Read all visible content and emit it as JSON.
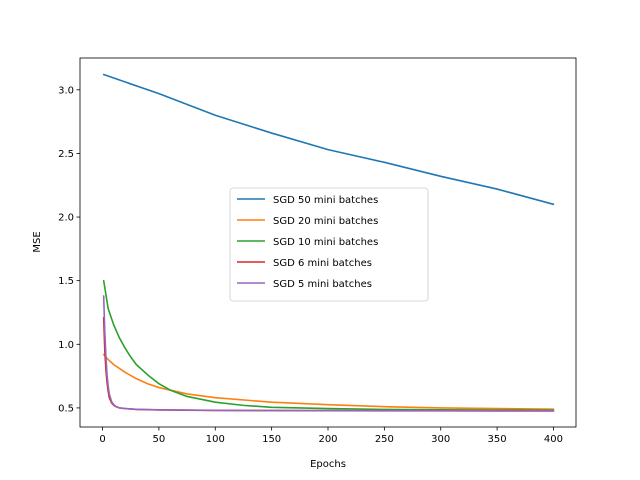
{
  "chart_data": {
    "type": "line",
    "title": "",
    "xlabel": "Epochs",
    "ylabel": "MSE",
    "xlim": [
      -20,
      420
    ],
    "ylim": [
      0.35,
      3.25
    ],
    "xticks": [
      0,
      50,
      100,
      150,
      200,
      250,
      300,
      350,
      400
    ],
    "yticks": [
      0.5,
      1.0,
      1.5,
      2.0,
      2.5,
      3.0
    ],
    "xtick_labels": [
      "0",
      "50",
      "100",
      "150",
      "200",
      "250",
      "300",
      "350",
      "400"
    ],
    "ytick_labels": [
      "0.5",
      "1.0",
      "1.5",
      "2.0",
      "2.5",
      "3.0"
    ],
    "grid": false,
    "legend_position": "center",
    "series": [
      {
        "name": "SGD 50 mini batches",
        "color": "#1f77b4",
        "x": [
          1,
          50,
          100,
          150,
          200,
          250,
          300,
          350,
          400
        ],
        "y": [
          3.12,
          2.97,
          2.8,
          2.66,
          2.53,
          2.43,
          2.32,
          2.22,
          2.1
        ]
      },
      {
        "name": "SGD 20 mini batches",
        "color": "#ff7f0e",
        "x": [
          1,
          5,
          10,
          20,
          30,
          40,
          50,
          75,
          100,
          150,
          200,
          250,
          300,
          350,
          400
        ],
        "y": [
          0.92,
          0.88,
          0.84,
          0.78,
          0.73,
          0.69,
          0.66,
          0.61,
          0.58,
          0.545,
          0.525,
          0.51,
          0.5,
          0.495,
          0.49
        ]
      },
      {
        "name": "SGD 10 mini batches",
        "color": "#2ca02c",
        "x": [
          1,
          5,
          10,
          15,
          20,
          25,
          30,
          40,
          50,
          60,
          75,
          100,
          125,
          150,
          200,
          250,
          300,
          350,
          400
        ],
        "y": [
          1.5,
          1.28,
          1.15,
          1.05,
          0.97,
          0.9,
          0.84,
          0.76,
          0.69,
          0.64,
          0.59,
          0.545,
          0.52,
          0.505,
          0.495,
          0.488,
          0.485,
          0.483,
          0.482
        ]
      },
      {
        "name": "SGD 6 mini batches",
        "color": "#d62728",
        "x": [
          1,
          2,
          3,
          4,
          5,
          6,
          8,
          10,
          12,
          15,
          20,
          30,
          50,
          100,
          200,
          300,
          400
        ],
        "y": [
          1.21,
          0.95,
          0.8,
          0.7,
          0.63,
          0.58,
          0.54,
          0.52,
          0.51,
          0.5,
          0.495,
          0.488,
          0.484,
          0.48,
          0.478,
          0.477,
          0.476
        ]
      },
      {
        "name": "SGD 5 mini batches",
        "color": "#9467bd",
        "x": [
          1,
          2,
          3,
          4,
          5,
          6,
          8,
          10,
          12,
          15,
          20,
          30,
          50,
          100,
          200,
          300,
          400
        ],
        "y": [
          1.38,
          1.1,
          0.9,
          0.76,
          0.67,
          0.61,
          0.55,
          0.525,
          0.51,
          0.5,
          0.495,
          0.489,
          0.485,
          0.481,
          0.479,
          0.478,
          0.477
        ]
      }
    ]
  }
}
